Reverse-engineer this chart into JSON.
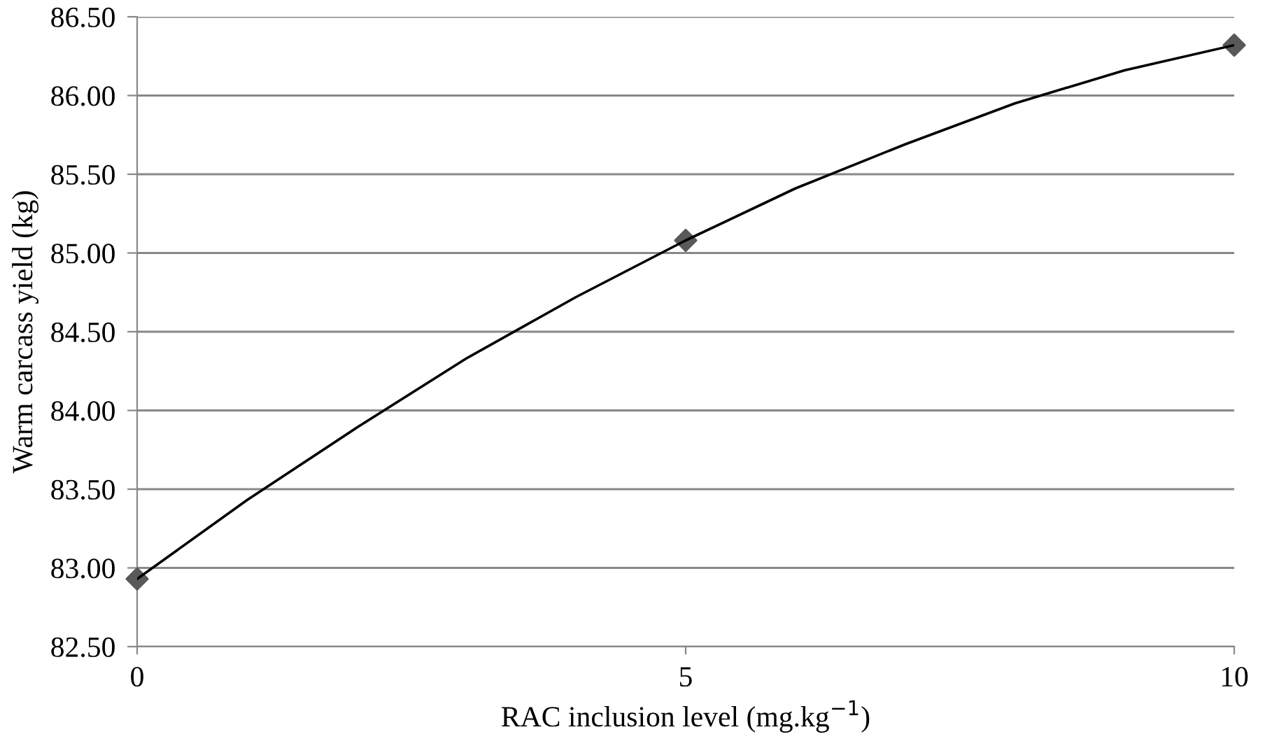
{
  "chart_data": {
    "type": "line",
    "xlabel": "RAC inclusion level (mg.kg$^{−1}$)",
    "ylabel": "Warm carcass yield (kg)",
    "xlim": [
      0,
      10
    ],
    "xticks": [
      0,
      5,
      10
    ],
    "ylim": [
      82.5,
      86.5
    ],
    "yticks": [
      {
        "value": 82.5,
        "label": "82.50"
      },
      {
        "value": 83.0,
        "label": "83.00"
      },
      {
        "value": 83.5,
        "label": "83.50"
      },
      {
        "value": 84.0,
        "label": "84.00"
      },
      {
        "value": 84.5,
        "label": "84.50"
      },
      {
        "value": 85.0,
        "label": "85.00"
      },
      {
        "value": 85.5,
        "label": "85.50"
      },
      {
        "value": 86.0,
        "label": "86.00"
      },
      {
        "value": 86.5,
        "label": "86.50"
      }
    ],
    "grid": "y",
    "legend": false,
    "series": [
      {
        "color": "#000000",
        "marker": "none",
        "line_style": "solid",
        "x": [
          0,
          1,
          2,
          3,
          4,
          5,
          6,
          7,
          8,
          9,
          10
        ],
        "values": [
          82.93,
          83.43,
          83.89,
          84.33,
          84.72,
          85.08,
          85.41,
          85.69,
          85.95,
          86.16,
          86.32
        ]
      },
      {
        "type": "scatter",
        "color": "#595959",
        "marker": "diamond",
        "x": [
          0,
          5,
          10
        ],
        "values": [
          82.93,
          85.08,
          86.32
        ]
      }
    ]
  }
}
